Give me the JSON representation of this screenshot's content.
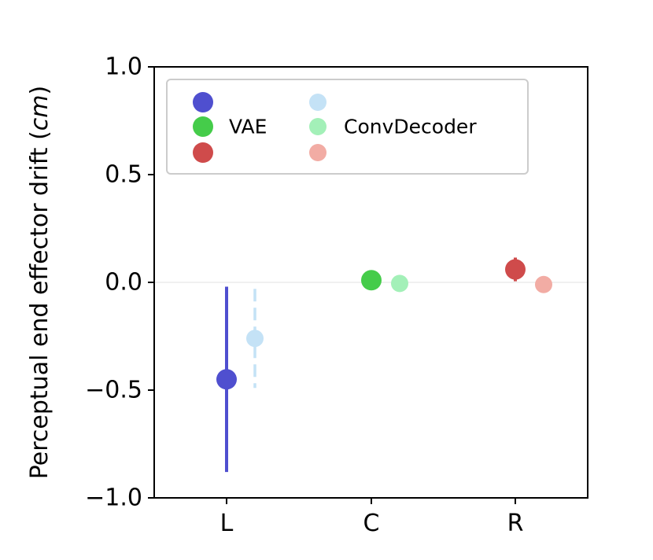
{
  "chart_data": {
    "type": "scatter",
    "ylabel_prefix": "Perceptual end effector drift (",
    "ylabel_unit": "cm",
    "ylabel_suffix": ")",
    "ylim": [
      -1.0,
      1.0
    ],
    "yticks": [
      {
        "value": -1.0,
        "label": "−1.0"
      },
      {
        "value": -0.5,
        "label": "−0.5"
      },
      {
        "value": 0.0,
        "label": "0.0"
      },
      {
        "value": 0.5,
        "label": "0.5"
      },
      {
        "value": 1.0,
        "label": "1.0"
      }
    ],
    "categories": [
      "L",
      "C",
      "R"
    ],
    "zero_line": true,
    "grid": false,
    "legend_position": "upper-left",
    "series": [
      {
        "name": "VAE",
        "colors": [
          "#4f4fcf",
          "#45cc4a",
          "#cf4b4b"
        ],
        "values": [
          -0.45,
          0.01,
          0.06
        ],
        "errors": [
          0.43,
          0.0,
          0.055
        ],
        "linestyle": "solid"
      },
      {
        "name": "ConvDecoder",
        "colors": [
          "#c4e2f6",
          "#a3f0b8",
          "#f2aca4"
        ],
        "values": [
          -0.26,
          -0.005,
          -0.01
        ],
        "errors": [
          0.23,
          0.0,
          0.0
        ],
        "linestyle": "dashed"
      }
    ]
  }
}
